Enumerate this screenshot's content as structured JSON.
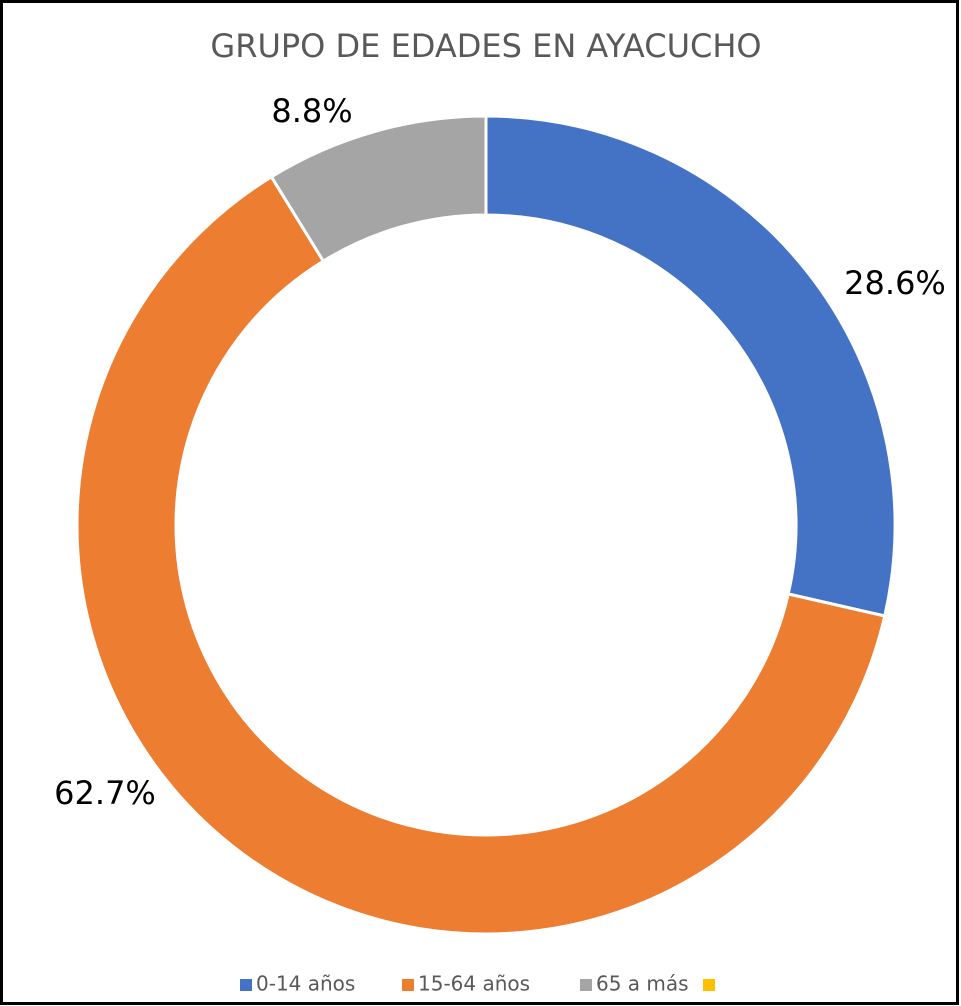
{
  "chart_data": {
    "type": "donut",
    "title": "GRUPO DE EDADES EN AYACUCHO",
    "categories": [
      "0-14 años",
      "15-64 años",
      "65 a más",
      null
    ],
    "values": [
      28.6,
      62.7,
      8.8,
      0
    ],
    "value_labels": [
      "28.6%",
      "62.7%",
      "8.8%",
      null
    ],
    "colors": [
      "#4472c4",
      "#ed7d31",
      "#a5a5a5",
      "#ffc000"
    ],
    "legend": "bottom"
  }
}
